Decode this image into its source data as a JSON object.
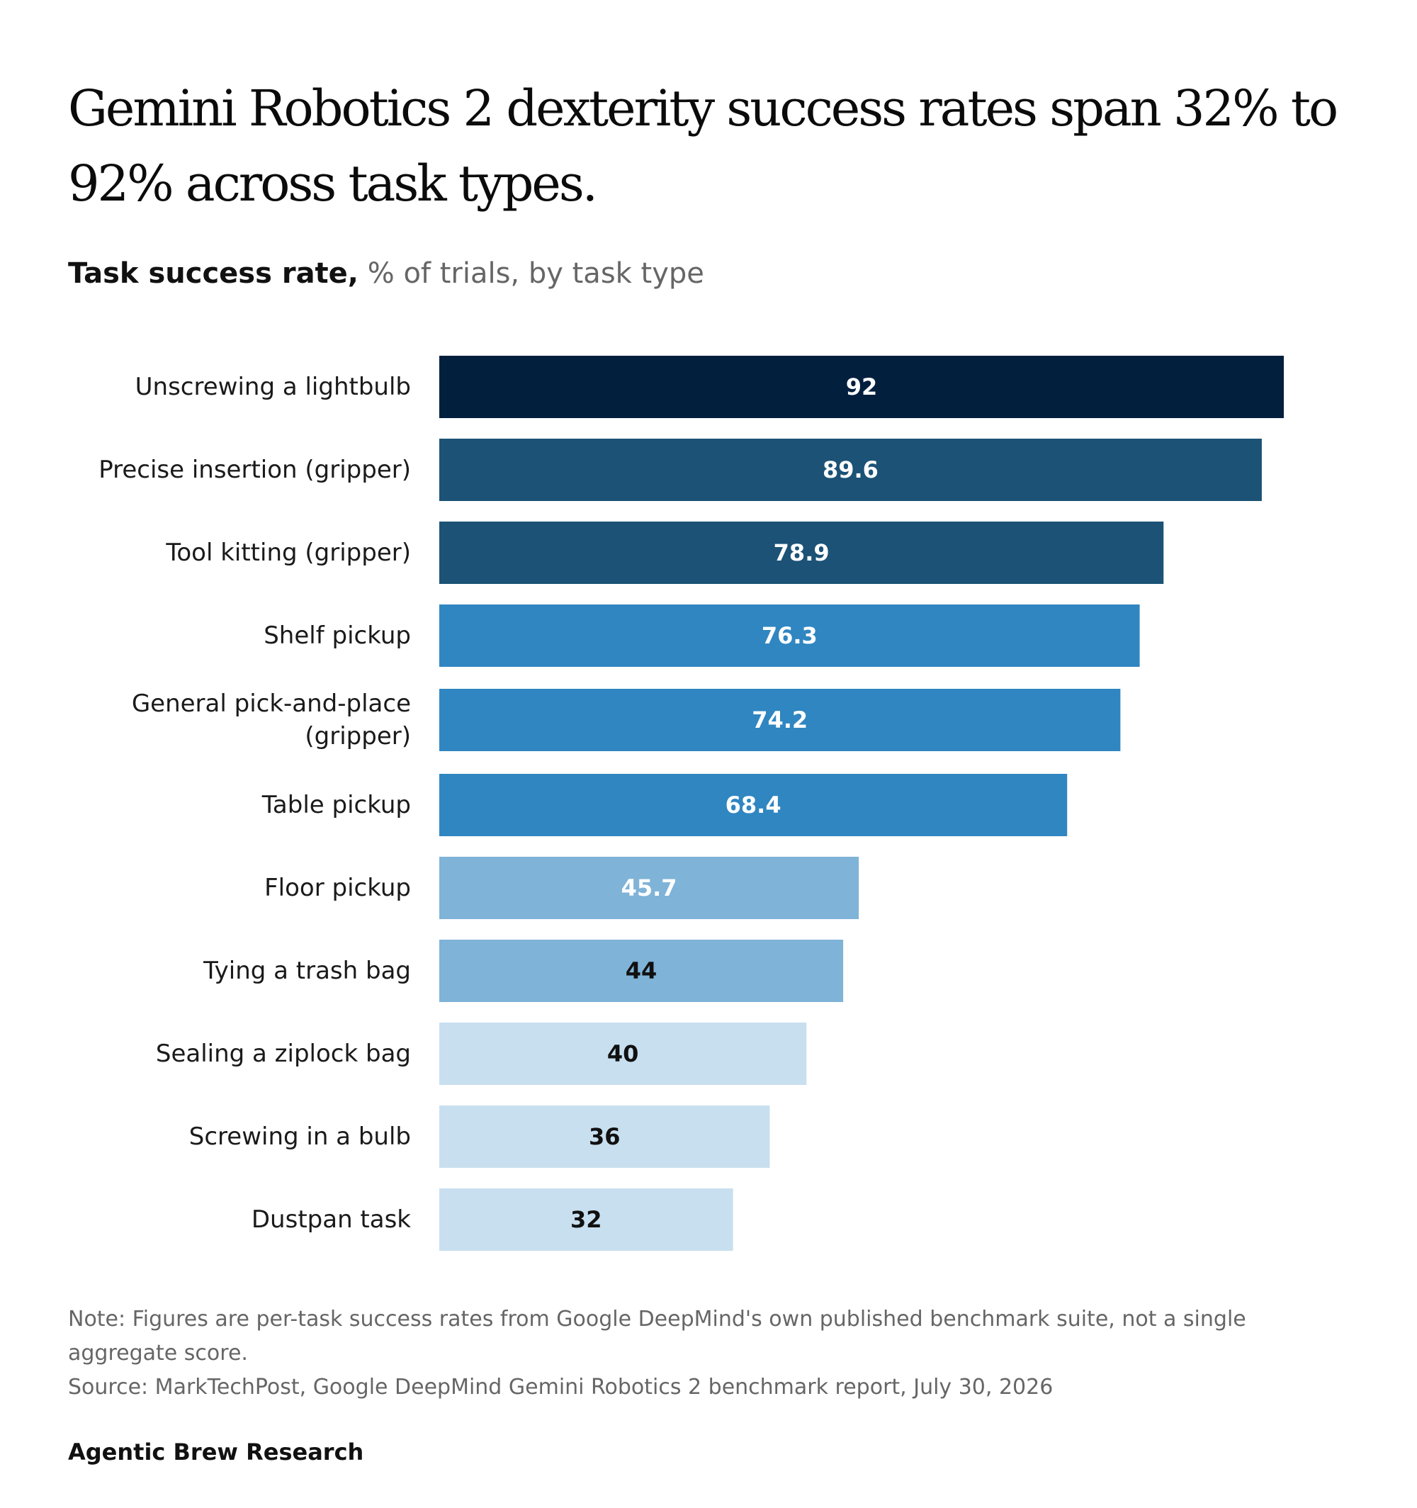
{
  "header": {
    "title": "Gemini Robotics 2 dexterity success rates span 32% to 92% across task types.",
    "subtitle_strong": "Task success rate,",
    "subtitle_light": "% of trials, by task type"
  },
  "chart_data": {
    "type": "bar",
    "orientation": "horizontal",
    "categories": [
      [
        "Unscrewing a lightbulb"
      ],
      [
        "Precise insertion (gripper)"
      ],
      [
        "Tool kitting (gripper)"
      ],
      [
        "Shelf pickup"
      ],
      [
        "General pick-and-place",
        "(gripper)"
      ],
      [
        "Table pickup"
      ],
      [
        "Floor pickup"
      ],
      [
        "Tying a trash bag"
      ],
      [
        "Sealing a ziplock bag"
      ],
      [
        "Screwing in a bulb"
      ],
      [
        "Dustpan task"
      ]
    ],
    "values": [
      92,
      89.6,
      78.9,
      76.3,
      74.2,
      68.4,
      45.7,
      44,
      40,
      36,
      32
    ],
    "value_labels": [
      "92",
      "89.6",
      "78.9",
      "76.3",
      "74.2",
      "68.4",
      "45.7",
      "44",
      "40",
      "36",
      "32"
    ],
    "bar_colors": [
      "#021f3d",
      "#1b5276",
      "#1b5276",
      "#2f86c1",
      "#2f86c1",
      "#2f86c1",
      "#7fb3d8",
      "#7fb3d8",
      "#c8dfef",
      "#c8dfef",
      "#c8dfef"
    ],
    "label_colors": [
      "#ffffff",
      "#ffffff",
      "#ffffff",
      "#ffffff",
      "#ffffff",
      "#ffffff",
      "#ffffff",
      "#111111",
      "#111111",
      "#111111",
      "#111111"
    ],
    "xlim": [
      0,
      92
    ],
    "grid": false,
    "legend": "none",
    "xlabel": "",
    "ylabel": ""
  },
  "footer": {
    "note": "Note: Figures are per-task success rates from Google DeepMind's own published benchmark suite, not a single aggregate score.",
    "source": "Source: MarkTechPost, Google DeepMind Gemini Robotics 2 benchmark report, July 30, 2026",
    "brand": "Agentic Brew Research"
  }
}
